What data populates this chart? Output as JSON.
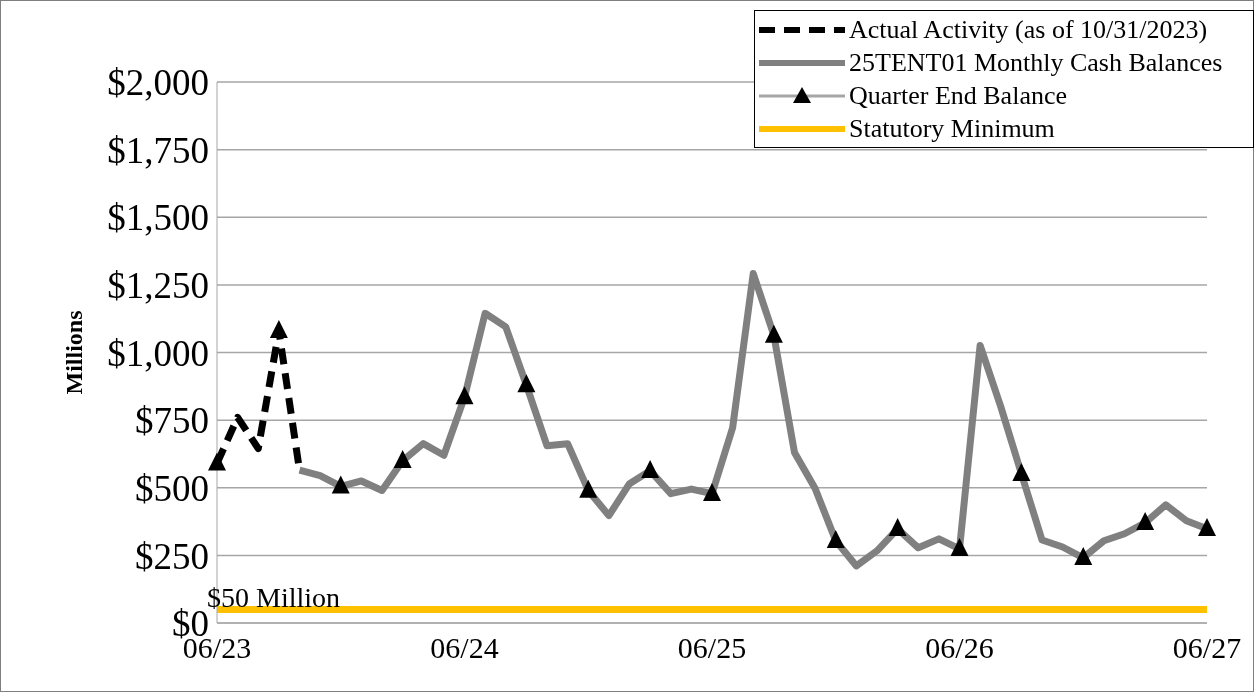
{
  "chart_data": {
    "type": "line",
    "ylabel": "Millions",
    "categories": [
      "06/23",
      null,
      null,
      null,
      null,
      null,
      null,
      null,
      null,
      null,
      null,
      null,
      "06/24",
      null,
      null,
      null,
      null,
      null,
      null,
      null,
      null,
      null,
      null,
      null,
      "06/25",
      null,
      null,
      null,
      null,
      null,
      null,
      null,
      null,
      null,
      null,
      null,
      "06/26",
      null,
      null,
      null,
      null,
      null,
      null,
      null,
      null,
      null,
      null,
      null,
      "06/27"
    ],
    "ylim": [
      0,
      2000
    ],
    "yticks": [
      {
        "value": 0,
        "label": "$0"
      },
      {
        "value": 250,
        "label": "$250"
      },
      {
        "value": 500,
        "label": "$500"
      },
      {
        "value": 750,
        "label": "$750"
      },
      {
        "value": 1000,
        "label": "$1,000"
      },
      {
        "value": 1250,
        "label": "$1,250"
      },
      {
        "value": 1500,
        "label": "$1,500"
      },
      {
        "value": 1750,
        "label": "$1,750"
      },
      {
        "value": 2000,
        "label": "$2,000"
      }
    ],
    "grid": "y",
    "legend": "top right",
    "series": [
      {
        "name": "Actual Activity (as of 10/31/2023)",
        "color": "#000000",
        "line_style": "dashed",
        "values": [
          590,
          760,
          645,
          1080,
          565,
          null,
          null,
          null,
          null,
          null,
          null,
          null,
          null,
          null,
          null,
          null,
          null,
          null,
          null,
          null,
          null,
          null,
          null,
          null,
          null,
          null,
          null,
          null,
          null,
          null,
          null,
          null,
          null,
          null,
          null,
          null,
          null,
          null,
          null,
          null,
          null,
          null,
          null,
          null,
          null,
          null,
          null,
          null,
          null
        ]
      },
      {
        "name": "25TENT01 Monthly Cash Balances",
        "color": "#808080",
        "line_style": "solid",
        "values": [
          null,
          null,
          null,
          null,
          565,
          545,
          505,
          525,
          490,
          600,
          663,
          620,
          835,
          1145,
          1095,
          880,
          655,
          663,
          490,
          397,
          515,
          563,
          478,
          495,
          478,
          722,
          1292,
          1063,
          630,
          497,
          304,
          211,
          267,
          348,
          278,
          311,
          274,
          1026,
          800,
          552,
          307,
          281,
          241,
          304,
          330,
          370,
          437,
          378,
          348
        ]
      },
      {
        "name": "Quarter End Balance",
        "type": "scatter",
        "color": "#000000",
        "marker": "triangle",
        "values": [
          590,
          null,
          null,
          1080,
          null,
          null,
          505,
          null,
          null,
          600,
          null,
          null,
          835,
          null,
          null,
          880,
          null,
          null,
          490,
          null,
          null,
          563,
          null,
          null,
          478,
          null,
          null,
          1063,
          null,
          null,
          304,
          null,
          null,
          348,
          null,
          null,
          274,
          null,
          null,
          552,
          null,
          null,
          241,
          null,
          null,
          370,
          null,
          null,
          348
        ]
      },
      {
        "name": "Statutory Minimum",
        "color": "#ffc000",
        "line_style": "solid",
        "values": [
          50,
          50,
          50,
          50,
          50,
          50,
          50,
          50,
          50,
          50,
          50,
          50,
          50,
          50,
          50,
          50,
          50,
          50,
          50,
          50,
          50,
          50,
          50,
          50,
          50,
          50,
          50,
          50,
          50,
          50,
          50,
          50,
          50,
          50,
          50,
          50,
          50,
          50,
          50,
          50,
          50,
          50,
          50,
          50,
          50,
          50,
          50,
          50,
          50
        ]
      }
    ],
    "annotations": [
      {
        "text": "$50 Million",
        "x": "06/23",
        "y": 50
      }
    ]
  }
}
